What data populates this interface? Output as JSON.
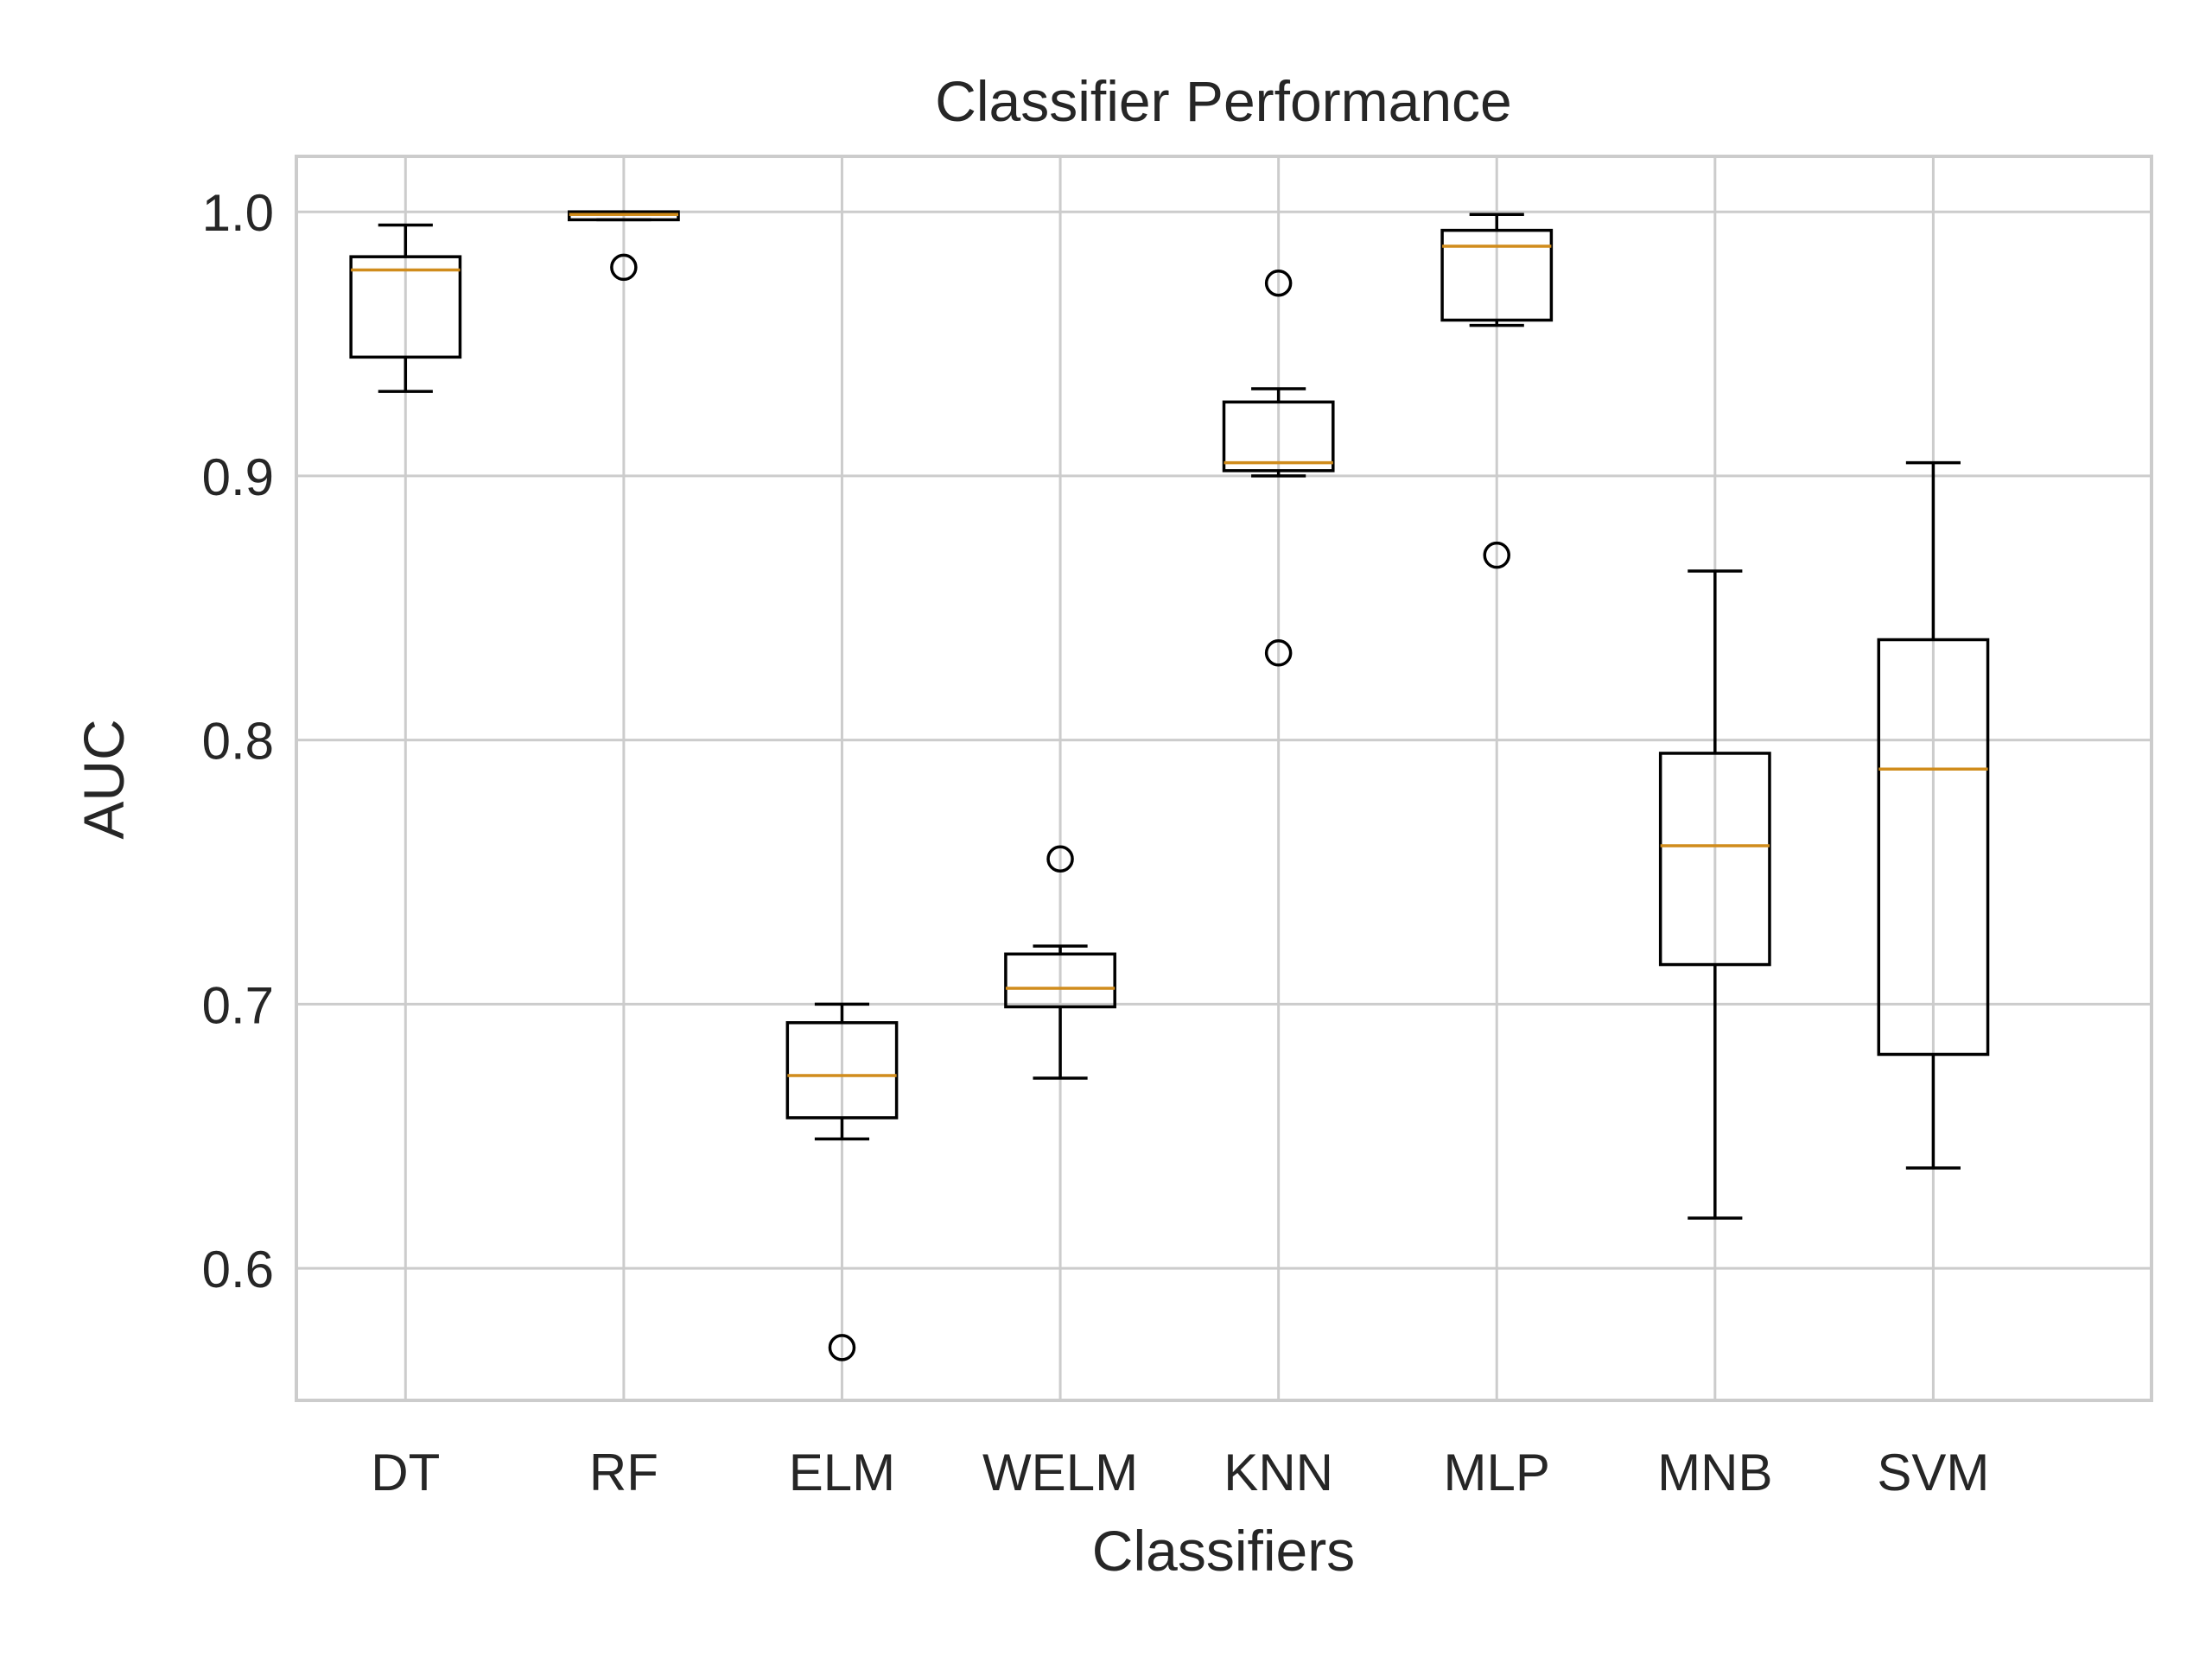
{
  "chart_data": {
    "type": "box",
    "title": "Classifier Performance",
    "xlabel": "Classifiers",
    "ylabel": "AUC",
    "ylim": [
      0.55,
      1.021
    ],
    "yticks": [
      0.6,
      0.7,
      0.8,
      0.9,
      1.0
    ],
    "ytick_labels": [
      "0.6",
      "0.7",
      "0.8",
      "0.9",
      "1.0"
    ],
    "grid": true,
    "categories": [
      "DT",
      "RF",
      "ELM",
      "WELM",
      "KNN",
      "MLP",
      "MNB",
      "SVM"
    ],
    "boxes": [
      {
        "label": "DT",
        "whisker_low": 0.932,
        "q1": 0.945,
        "median": 0.978,
        "q3": 0.983,
        "whisker_high": 0.995,
        "outliers": []
      },
      {
        "label": "RF",
        "whisker_low": 0.997,
        "q1": 0.997,
        "median": 0.999,
        "q3": 1.0,
        "whisker_high": 1.0,
        "outliers": [
          0.979
        ]
      },
      {
        "label": "ELM",
        "whisker_low": 0.649,
        "q1": 0.657,
        "median": 0.673,
        "q3": 0.693,
        "whisker_high": 0.7,
        "outliers": [
          0.57
        ]
      },
      {
        "label": "WELM",
        "whisker_low": 0.672,
        "q1": 0.699,
        "median": 0.706,
        "q3": 0.719,
        "whisker_high": 0.722,
        "outliers": [
          0.755
        ]
      },
      {
        "label": "KNN",
        "whisker_low": 0.9,
        "q1": 0.902,
        "median": 0.905,
        "q3": 0.928,
        "whisker_high": 0.933,
        "outliers": [
          0.973,
          0.833
        ]
      },
      {
        "label": "MLP",
        "whisker_low": 0.957,
        "q1": 0.959,
        "median": 0.987,
        "q3": 0.993,
        "whisker_high": 0.999,
        "outliers": [
          0.87
        ]
      },
      {
        "label": "MNB",
        "whisker_low": 0.619,
        "q1": 0.715,
        "median": 0.76,
        "q3": 0.795,
        "whisker_high": 0.864,
        "outliers": []
      },
      {
        "label": "SVM",
        "whisker_low": 0.638,
        "q1": 0.681,
        "median": 0.789,
        "q3": 0.838,
        "whisker_high": 0.905,
        "outliers": []
      }
    ],
    "colors": {
      "box": "#000000",
      "median": "#d08c1c",
      "grid": "#cccccc",
      "spine": "#cccccc",
      "text": "#262626",
      "background": "#ffffff"
    }
  }
}
